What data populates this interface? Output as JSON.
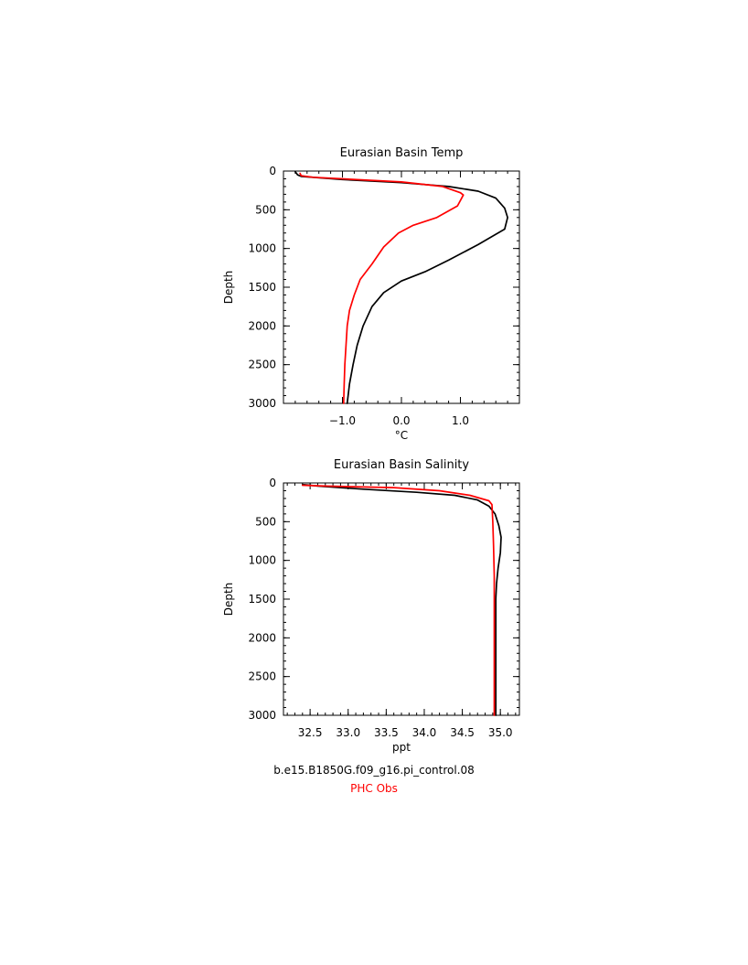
{
  "chart_data": [
    {
      "type": "line",
      "title": "Eurasian Basin Temp",
      "xlabel": "°C",
      "ylabel": "Depth",
      "xlim": [
        -2.0,
        2.0
      ],
      "ylim": [
        3000,
        0
      ],
      "x_ticks": [
        -1.0,
        0.0,
        1.0
      ],
      "x_tick_labels": [
        "−1.0",
        "0.0",
        "1.0"
      ],
      "y_ticks": [
        0,
        500,
        1000,
        1500,
        2000,
        2500,
        3000
      ],
      "y_tick_labels": [
        "0",
        "500",
        "1000",
        "1500",
        "2000",
        "2500",
        "3000"
      ],
      "series": [
        {
          "name": "b.e15.B1850G.f09_g16.pi_control.08",
          "color": "#000000",
          "points": [
            [
              -1.8,
              10
            ],
            [
              -1.76,
              50
            ],
            [
              -1.7,
              70
            ],
            [
              -1.0,
              110
            ],
            [
              0.0,
              150
            ],
            [
              0.8,
              200
            ],
            [
              1.3,
              260
            ],
            [
              1.6,
              350
            ],
            [
              1.75,
              480
            ],
            [
              1.8,
              600
            ],
            [
              1.75,
              750
            ],
            [
              1.3,
              950
            ],
            [
              0.8,
              1150
            ],
            [
              0.4,
              1300
            ],
            [
              0.0,
              1420
            ],
            [
              -0.3,
              1570
            ],
            [
              -0.5,
              1750
            ],
            [
              -0.65,
              2000
            ],
            [
              -0.75,
              2250
            ],
            [
              -0.82,
              2500
            ],
            [
              -0.88,
              2750
            ],
            [
              -0.92,
              3000
            ]
          ]
        },
        {
          "name": "PHC Obs",
          "color": "#ff0000",
          "points": [
            [
              -1.72,
              30
            ],
            [
              -1.7,
              60
            ],
            [
              -1.5,
              80
            ],
            [
              -1.0,
              100
            ],
            [
              0.0,
              140
            ],
            [
              0.7,
              200
            ],
            [
              1.0,
              280
            ],
            [
              1.05,
              310
            ],
            [
              0.95,
              450
            ],
            [
              0.6,
              600
            ],
            [
              0.2,
              700
            ],
            [
              -0.05,
              800
            ],
            [
              -0.3,
              980
            ],
            [
              -0.5,
              1200
            ],
            [
              -0.7,
              1400
            ],
            [
              -0.8,
              1600
            ],
            [
              -0.88,
              1800
            ],
            [
              -0.92,
              2000
            ],
            [
              -0.94,
              2250
            ],
            [
              -0.96,
              2500
            ],
            [
              -0.97,
              2750
            ],
            [
              -0.98,
              3000
            ]
          ]
        }
      ]
    },
    {
      "type": "line",
      "title": "Eurasian Basin Salinity",
      "xlabel": "ppt",
      "ylabel": "Depth",
      "xlim": [
        32.15,
        35.25
      ],
      "ylim": [
        3000,
        0
      ],
      "x_ticks": [
        32.5,
        33.0,
        33.5,
        34.0,
        34.5,
        35.0
      ],
      "x_tick_labels": [
        "32.5",
        "33.0",
        "33.5",
        "34.0",
        "34.5",
        "35.0"
      ],
      "y_ticks": [
        0,
        500,
        1000,
        1500,
        2000,
        2500,
        3000
      ],
      "y_tick_labels": [
        "0",
        "500",
        "1000",
        "1500",
        "2000",
        "2500",
        "3000"
      ],
      "series": [
        {
          "name": "b.e15.B1850G.f09_g16.pi_control.08",
          "color": "#000000",
          "points": [
            [
              32.4,
              20
            ],
            [
              32.6,
              40
            ],
            [
              33.2,
              80
            ],
            [
              33.9,
              120
            ],
            [
              34.4,
              160
            ],
            [
              34.7,
              220
            ],
            [
              34.85,
              300
            ],
            [
              34.93,
              400
            ],
            [
              34.98,
              550
            ],
            [
              35.01,
              700
            ],
            [
              35.0,
              900
            ],
            [
              34.97,
              1100
            ],
            [
              34.95,
              1300
            ],
            [
              34.94,
              1500
            ],
            [
              34.94,
              2000
            ],
            [
              34.94,
              2500
            ],
            [
              34.94,
              3000
            ]
          ]
        },
        {
          "name": "PHC Obs",
          "color": "#ff0000",
          "points": [
            [
              32.4,
              30
            ],
            [
              32.7,
              40
            ],
            [
              33.6,
              60
            ],
            [
              34.2,
              100
            ],
            [
              34.6,
              160
            ],
            [
              34.85,
              230
            ],
            [
              34.89,
              280
            ],
            [
              34.9,
              500
            ],
            [
              34.91,
              800
            ],
            [
              34.92,
              1200
            ],
            [
              34.92,
              1600
            ],
            [
              34.92,
              2000
            ],
            [
              34.92,
              2500
            ],
            [
              34.92,
              3000
            ]
          ]
        }
      ]
    }
  ],
  "legend": {
    "items": [
      {
        "label": "b.e15.B1850G.f09_g16.pi_control.08",
        "color": "#000000"
      },
      {
        "label": "PHC Obs",
        "color": "#ff0000"
      }
    ]
  }
}
